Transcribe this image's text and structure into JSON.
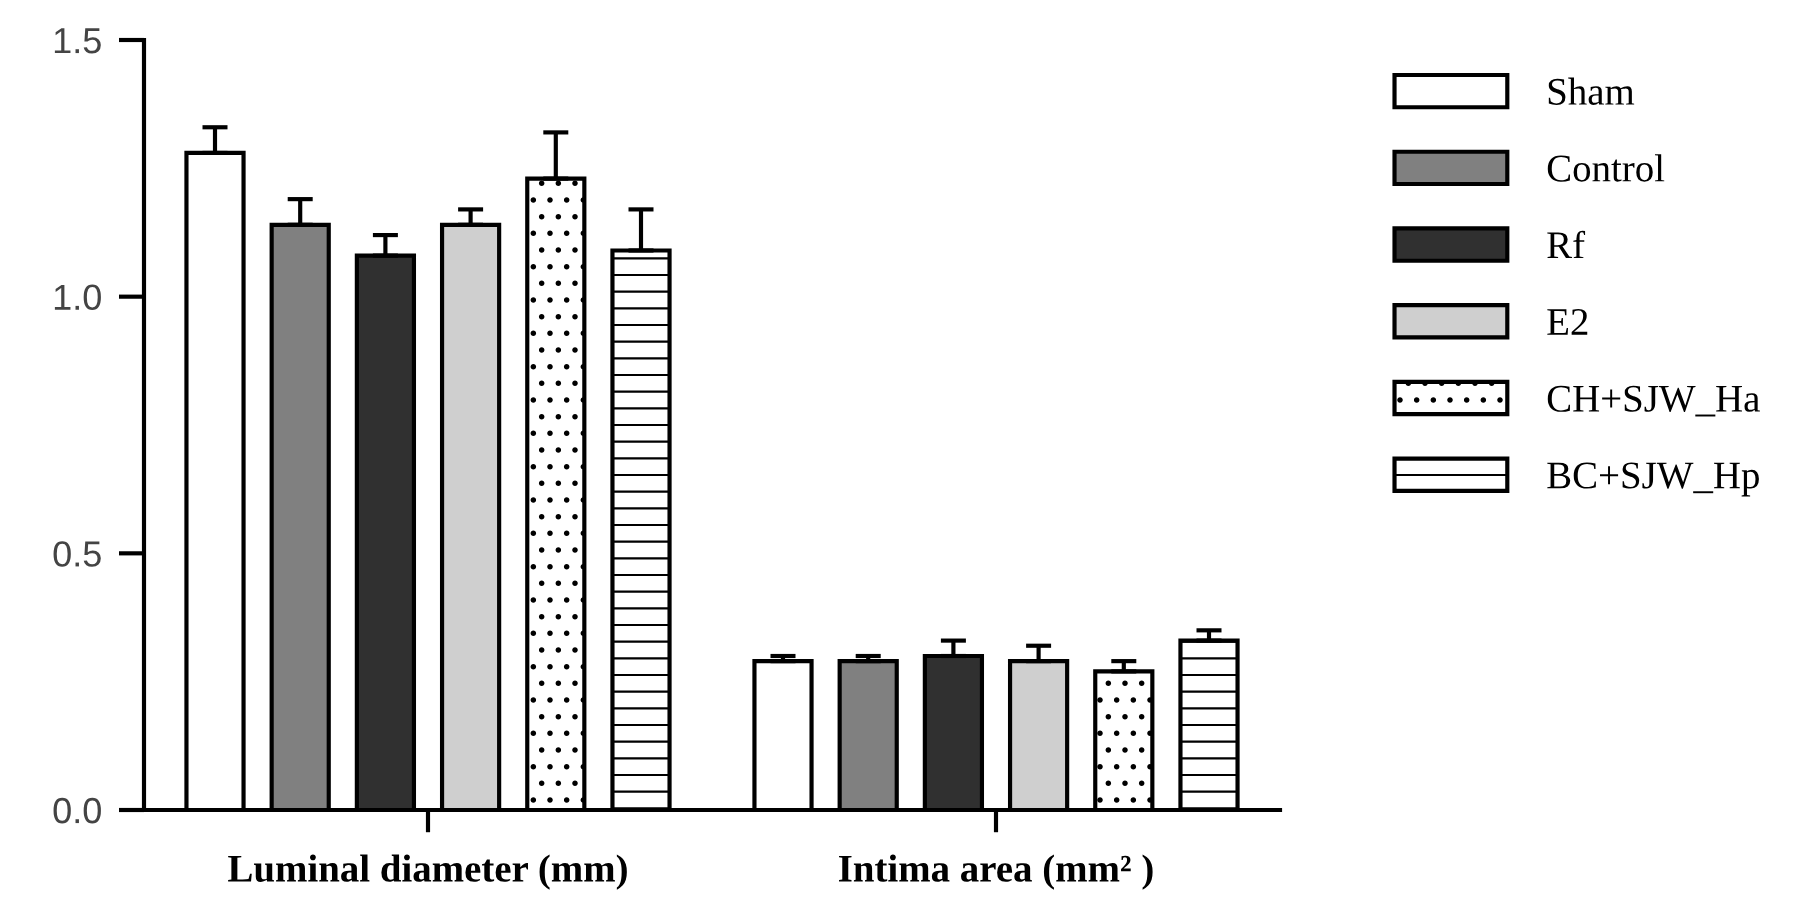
{
  "chart_data": {
    "type": "bar",
    "categories": [
      "Luminal diameter (mm)",
      "Intima area (mm² )"
    ],
    "series": [
      {
        "name": "Sham",
        "color": "#ffffff",
        "values": [
          1.28,
          0.29
        ],
        "errors": [
          [
            1.28,
            1.33
          ],
          [
            0.29,
            0.3
          ]
        ]
      },
      {
        "name": "Control",
        "color": "#808080",
        "values": [
          1.14,
          0.29
        ],
        "errors": [
          [
            1.14,
            1.19
          ],
          [
            0.29,
            0.3
          ]
        ]
      },
      {
        "name": "Rf",
        "color": "#303030",
        "values": [
          1.08,
          0.3
        ],
        "errors": [
          [
            1.08,
            1.12
          ],
          [
            0.3,
            0.33
          ]
        ]
      },
      {
        "name": "E2",
        "color": "#cfcfcf",
        "values": [
          1.14,
          0.29
        ],
        "errors": [
          [
            1.14,
            1.17
          ],
          [
            0.29,
            0.32
          ]
        ]
      },
      {
        "name": "CH+SJW_Ha",
        "color": "#ffffff",
        "values": [
          1.23,
          0.27
        ],
        "errors": [
          [
            1.23,
            1.32
          ],
          [
            0.27,
            0.29
          ]
        ]
      },
      {
        "name": "BC+SJW_Hp",
        "color": "#ffffff",
        "values": [
          1.09,
          0.33
        ],
        "errors": [
          [
            1.09,
            1.17
          ],
          [
            0.33,
            0.35
          ]
        ]
      }
    ],
    "ylim": [
      0,
      1.5
    ],
    "yticks": [
      {
        "value": 0,
        "label": "0.0"
      },
      {
        "value": 0.5,
        "label": "0.5"
      },
      {
        "value": 1.0,
        "label": "1.0"
      },
      {
        "value": 1.5,
        "label": "1.5"
      }
    ],
    "legend": "right"
  }
}
